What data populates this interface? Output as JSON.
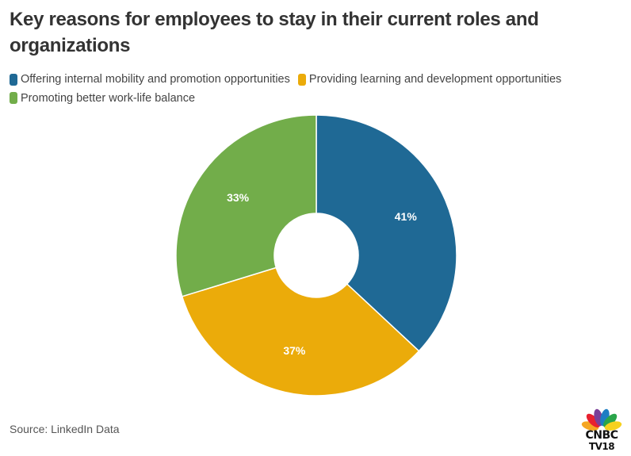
{
  "chart_data": {
    "type": "pie",
    "variant": "donut",
    "title": "Key reasons for employees to stay in their current roles and organizations",
    "categories": [
      "Offering internal mobility and promotion opportunities",
      "Providing learning and development opportunities",
      "Promoting better work-life balance"
    ],
    "values": [
      41,
      37,
      33
    ],
    "labels": [
      "41%",
      "37%",
      "33%"
    ],
    "colors": [
      "#1f6995",
      "#ebab0a",
      "#72ad4a"
    ],
    "legend_position": "top-left",
    "source": "Source: LinkedIn Data"
  },
  "branding": {
    "logo_line1": "CNBC",
    "logo_line2": "TV18",
    "peacock_colors": [
      "#f5a623",
      "#e8212f",
      "#7b3f98",
      "#1d7dc3",
      "#2aa54a",
      "#f6d11f"
    ]
  }
}
